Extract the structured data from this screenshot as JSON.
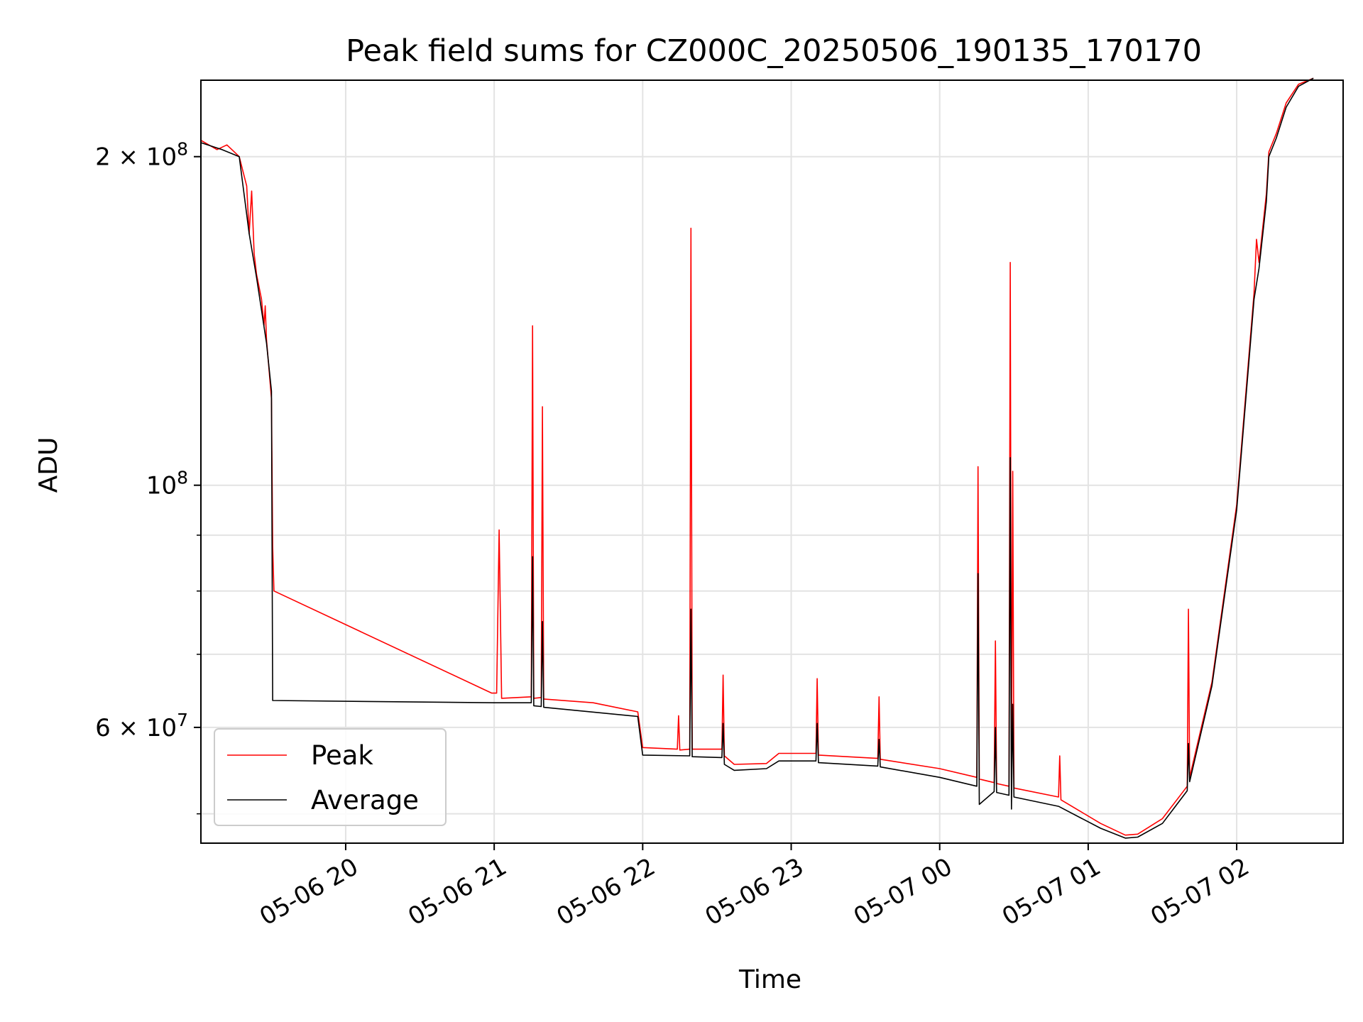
{
  "chart_data": {
    "type": "line",
    "title": "Peak field sums for CZ000C_20250506_190135_170170",
    "xlabel": "Time",
    "ylabel": "ADU",
    "yscale": "log",
    "ylim": [
      47000000,
      235000000
    ],
    "xlim": [
      "2025-05-06T19:01:30",
      "2025-05-07T02:43:00"
    ],
    "x_ticks": [
      {
        "value": "2025-05-06T20:00",
        "label": "05-06 20"
      },
      {
        "value": "2025-05-06T21:00",
        "label": "05-06 21"
      },
      {
        "value": "2025-05-06T22:00",
        "label": "05-06 22"
      },
      {
        "value": "2025-05-06T23:00",
        "label": "05-06 23"
      },
      {
        "value": "2025-05-07T00:00",
        "label": "05-07 00"
      },
      {
        "value": "2025-05-07T01:00",
        "label": "05-07 01"
      },
      {
        "value": "2025-05-07T02:00",
        "label": "05-07 02"
      }
    ],
    "y_ticks": [
      {
        "value": 200000000,
        "base": "2 × 10",
        "exp": "8"
      },
      {
        "value": 100000000,
        "base": "10",
        "exp": "8"
      },
      {
        "value": 60000000,
        "base": "6 × 10",
        "exp": "7"
      }
    ],
    "y_minor_ticks": [
      50000000,
      70000000,
      80000000,
      90000000
    ],
    "grid": true,
    "legend_position": "lower-left",
    "series": [
      {
        "name": "Peak",
        "color": "#ff0000",
        "points": [
          [
            "2025-05-06T19:01:30",
            207000000
          ],
          [
            "2025-05-06T19:08",
            203000000
          ],
          [
            "2025-05-06T19:12",
            205000000
          ],
          [
            "2025-05-06T19:15",
            202000000
          ],
          [
            "2025-05-06T19:17",
            200000000
          ],
          [
            "2025-05-06T19:20",
            188000000
          ],
          [
            "2025-05-06T19:21",
            170000000
          ],
          [
            "2025-05-06T19:22",
            186000000
          ],
          [
            "2025-05-06T19:23",
            163000000
          ],
          [
            "2025-05-06T19:24",
            156000000
          ],
          [
            "2025-05-06T19:26",
            148000000
          ],
          [
            "2025-05-06T19:27",
            140000000
          ],
          [
            "2025-05-06T19:27:30",
            146000000
          ],
          [
            "2025-05-06T19:28",
            136000000
          ],
          [
            "2025-05-06T19:30",
            120000000
          ],
          [
            "2025-05-06T19:30:30",
            88000000
          ],
          [
            "2025-05-06T19:31",
            80000000
          ],
          [
            "2025-05-06T20:59",
            64500000
          ],
          [
            "2025-05-06T21:01",
            64500000
          ],
          [
            "2025-05-06T21:02",
            91000000
          ],
          [
            "2025-05-06T21:03",
            63800000
          ],
          [
            "2025-05-06T21:15",
            64000000
          ],
          [
            "2025-05-06T21:15:30",
            140000000
          ],
          [
            "2025-05-06T21:16",
            63800000
          ],
          [
            "2025-05-06T21:19",
            63900000
          ],
          [
            "2025-05-06T21:19:30",
            118000000
          ],
          [
            "2025-05-06T21:20",
            63700000
          ],
          [
            "2025-05-06T21:40",
            63200000
          ],
          [
            "2025-05-06T21:58",
            62000000
          ],
          [
            "2025-05-06T22:00",
            57500000
          ],
          [
            "2025-05-06T22:14",
            57300000
          ],
          [
            "2025-05-06T22:14:30",
            61500000
          ],
          [
            "2025-05-06T22:15",
            57200000
          ],
          [
            "2025-05-06T22:19",
            57300000
          ],
          [
            "2025-05-06T22:19:30",
            172000000
          ],
          [
            "2025-05-06T22:20",
            57300000
          ],
          [
            "2025-05-06T22:32",
            57300000
          ],
          [
            "2025-05-06T22:32:30",
            67000000
          ],
          [
            "2025-05-06T22:33",
            56500000
          ],
          [
            "2025-05-06T22:37",
            55500000
          ],
          [
            "2025-05-06T22:50",
            55600000
          ],
          [
            "2025-05-06T22:55",
            56800000
          ],
          [
            "2025-05-06T23:10",
            56800000
          ],
          [
            "2025-05-06T23:10:30",
            66500000
          ],
          [
            "2025-05-06T23:11",
            56600000
          ],
          [
            "2025-05-06T23:35",
            56200000
          ],
          [
            "2025-05-06T23:35:30",
            64000000
          ],
          [
            "2025-05-06T23:36",
            56100000
          ],
          [
            "2025-05-07T00:00",
            55000000
          ],
          [
            "2025-05-07T00:15",
            54000000
          ],
          [
            "2025-05-07T00:15:30",
            104000000
          ],
          [
            "2025-05-07T00:16",
            53800000
          ],
          [
            "2025-05-07T00:22",
            53400000
          ],
          [
            "2025-05-07T00:22:30",
            72000000
          ],
          [
            "2025-05-07T00:23",
            53300000
          ],
          [
            "2025-05-07T00:28",
            53000000
          ],
          [
            "2025-05-07T00:28:30",
            160000000
          ],
          [
            "2025-05-07T00:29",
            53000000
          ],
          [
            "2025-05-07T00:29:30",
            103000000
          ],
          [
            "2025-05-07T00:30",
            52800000
          ],
          [
            "2025-05-07T00:48",
            51800000
          ],
          [
            "2025-05-07T00:48:30",
            56500000
          ],
          [
            "2025-05-07T00:49",
            51500000
          ],
          [
            "2025-05-07T01:05",
            49000000
          ],
          [
            "2025-05-07T01:15",
            47800000
          ],
          [
            "2025-05-07T01:20",
            47900000
          ],
          [
            "2025-05-07T01:30",
            49500000
          ],
          [
            "2025-05-07T01:40",
            53000000
          ],
          [
            "2025-05-07T01:40:30",
            77000000
          ],
          [
            "2025-05-07T01:41",
            54000000
          ],
          [
            "2025-05-07T01:50",
            66000000
          ],
          [
            "2025-05-07T02:00",
            96000000
          ],
          [
            "2025-05-07T02:07",
            150000000
          ],
          [
            "2025-05-07T02:08",
            168000000
          ],
          [
            "2025-05-07T02:09",
            160000000
          ],
          [
            "2025-05-07T02:12",
            185000000
          ],
          [
            "2025-05-07T02:13",
            202000000
          ],
          [
            "2025-05-07T02:16",
            210000000
          ],
          [
            "2025-05-07T02:20",
            224000000
          ],
          [
            "2025-05-07T02:25",
            233000000
          ],
          [
            "2025-05-07T02:31",
            236000000
          ]
        ]
      },
      {
        "name": "Average",
        "color": "#000000",
        "points": [
          [
            "2025-05-06T19:01:30",
            206000000
          ],
          [
            "2025-05-06T19:10",
            203000000
          ],
          [
            "2025-05-06T19:17",
            200000000
          ],
          [
            "2025-05-06T19:21",
            170000000
          ],
          [
            "2025-05-06T19:24",
            155000000
          ],
          [
            "2025-05-06T19:28",
            135000000
          ],
          [
            "2025-05-06T19:30",
            122000000
          ],
          [
            "2025-05-06T19:30:30",
            63500000
          ],
          [
            "2025-05-06T21:00",
            63200000
          ],
          [
            "2025-05-06T21:15",
            63200000
          ],
          [
            "2025-05-06T21:15:30",
            86000000
          ],
          [
            "2025-05-06T21:16",
            62800000
          ],
          [
            "2025-05-06T21:19",
            62700000
          ],
          [
            "2025-05-06T21:19:30",
            75000000
          ],
          [
            "2025-05-06T21:20",
            62600000
          ],
          [
            "2025-05-06T21:58",
            61400000
          ],
          [
            "2025-05-06T22:00",
            56600000
          ],
          [
            "2025-05-06T22:19",
            56500000
          ],
          [
            "2025-05-06T22:19:30",
            77000000
          ],
          [
            "2025-05-06T22:20",
            56400000
          ],
          [
            "2025-05-06T22:32",
            56300000
          ],
          [
            "2025-05-06T22:32:30",
            60500000
          ],
          [
            "2025-05-06T22:33",
            55500000
          ],
          [
            "2025-05-06T22:37",
            54800000
          ],
          [
            "2025-05-06T22:50",
            55000000
          ],
          [
            "2025-05-06T22:55",
            55900000
          ],
          [
            "2025-05-06T23:10",
            55900000
          ],
          [
            "2025-05-06T23:10:30",
            60500000
          ],
          [
            "2025-05-06T23:11",
            55700000
          ],
          [
            "2025-05-06T23:35",
            55300000
          ],
          [
            "2025-05-06T23:35:30",
            58500000
          ],
          [
            "2025-05-06T23:36",
            55200000
          ],
          [
            "2025-05-07T00:00",
            54000000
          ],
          [
            "2025-05-07T00:15",
            53000000
          ],
          [
            "2025-05-07T00:15:30",
            83000000
          ],
          [
            "2025-05-07T00:16",
            51000000
          ],
          [
            "2025-05-07T00:22",
            52400000
          ],
          [
            "2025-05-07T00:22:30",
            60000000
          ],
          [
            "2025-05-07T00:23",
            52300000
          ],
          [
            "2025-05-07T00:28",
            52000000
          ],
          [
            "2025-05-07T00:28:30",
            106000000
          ],
          [
            "2025-05-07T00:29",
            50500000
          ],
          [
            "2025-05-07T00:29:30",
            63000000
          ],
          [
            "2025-05-07T00:30",
            51800000
          ],
          [
            "2025-05-07T00:48",
            50800000
          ],
          [
            "2025-05-07T01:05",
            48500000
          ],
          [
            "2025-05-07T01:15",
            47500000
          ],
          [
            "2025-05-07T01:20",
            47600000
          ],
          [
            "2025-05-07T01:30",
            49000000
          ],
          [
            "2025-05-07T01:40",
            52500000
          ],
          [
            "2025-05-07T01:40:30",
            58000000
          ],
          [
            "2025-05-07T01:41",
            53500000
          ],
          [
            "2025-05-07T01:50",
            65500000
          ],
          [
            "2025-05-07T02:00",
            95000000
          ],
          [
            "2025-05-07T02:07",
            148000000
          ],
          [
            "2025-05-07T02:09",
            158000000
          ],
          [
            "2025-05-07T02:12",
            182000000
          ],
          [
            "2025-05-07T02:13",
            200000000
          ],
          [
            "2025-05-07T02:16",
            208000000
          ],
          [
            "2025-05-07T02:20",
            222000000
          ],
          [
            "2025-05-07T02:25",
            232000000
          ],
          [
            "2025-05-07T02:31",
            236000000
          ]
        ]
      }
    ]
  }
}
